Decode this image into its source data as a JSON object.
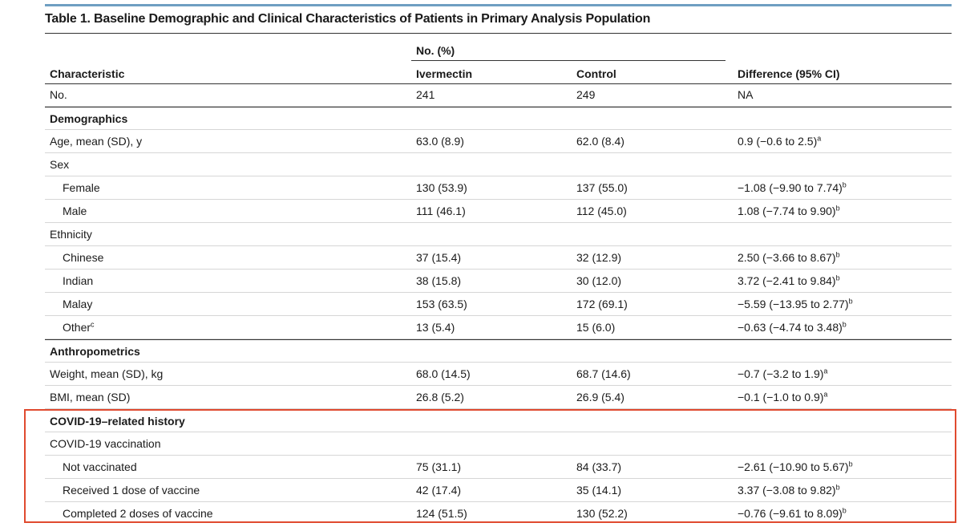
{
  "title": "Table 1. Baseline Demographic and Clinical Characteristics of Patients in Primary Analysis Population",
  "header": {
    "characteristic": "Characteristic",
    "no_pct": "No. (%)",
    "ivermectin": "Ivermectin",
    "control": "Control",
    "difference": "Difference (95% CI)"
  },
  "rows": [
    {
      "label": "No.",
      "iv": "241",
      "ctl": "249",
      "diff": "NA",
      "sup": ""
    },
    {
      "label": "Demographics",
      "iv": "",
      "ctl": "",
      "diff": "",
      "sup": ""
    },
    {
      "label": "Age, mean (SD), y",
      "iv": "63.0 (8.9)",
      "ctl": "62.0 (8.4)",
      "diff": "0.9 (−0.6 to 2.5)",
      "sup": "a"
    },
    {
      "label": "Sex",
      "iv": "",
      "ctl": "",
      "diff": "",
      "sup": ""
    },
    {
      "label": "Female",
      "iv": "130 (53.9)",
      "ctl": "137 (55.0)",
      "diff": "−1.08 (−9.90 to 7.74)",
      "sup": "b"
    },
    {
      "label": "Male",
      "iv": "111 (46.1)",
      "ctl": "112 (45.0)",
      "diff": "1.08 (−7.74 to 9.90)",
      "sup": "b"
    },
    {
      "label": "Ethnicity",
      "iv": "",
      "ctl": "",
      "diff": "",
      "sup": ""
    },
    {
      "label": "Chinese",
      "iv": "37 (15.4)",
      "ctl": "32 (12.9)",
      "diff": "2.50 (−3.66 to 8.67)",
      "sup": "b"
    },
    {
      "label": "Indian",
      "iv": "38 (15.8)",
      "ctl": "30 (12.0)",
      "diff": "3.72 (−2.41 to 9.84)",
      "sup": "b"
    },
    {
      "label": "Malay",
      "iv": "153 (63.5)",
      "ctl": "172 (69.1)",
      "diff": "−5.59 (−13.95 to 2.77)",
      "sup": "b"
    },
    {
      "label": "Other",
      "label_sup": "c",
      "iv": "13 (5.4)",
      "ctl": "15 (6.0)",
      "diff": "−0.63 (−4.74 to 3.48)",
      "sup": "b"
    },
    {
      "label": "Anthropometrics",
      "iv": "",
      "ctl": "",
      "diff": "",
      "sup": ""
    },
    {
      "label": "Weight, mean (SD), kg",
      "iv": "68.0 (14.5)",
      "ctl": "68.7 (14.6)",
      "diff": "−0.7 (−3.2 to 1.9)",
      "sup": "a"
    },
    {
      "label": "BMI, mean (SD)",
      "iv": "26.8 (5.2)",
      "ctl": "26.9 (5.4)",
      "diff": "−0.1 (−1.0 to 0.9)",
      "sup": "a"
    },
    {
      "label": "COVID-19–related history",
      "iv": "",
      "ctl": "",
      "diff": "",
      "sup": ""
    },
    {
      "label": "COVID-19 vaccination",
      "iv": "",
      "ctl": "",
      "diff": "",
      "sup": ""
    },
    {
      "label": "Not vaccinated",
      "iv": "75 (31.1)",
      "ctl": "84 (33.7)",
      "diff": "−2.61 (−10.90 to 5.67)",
      "sup": "b"
    },
    {
      "label": "Received 1 dose of vaccine",
      "iv": "42 (17.4)",
      "ctl": "35 (14.1)",
      "diff": "3.37 (−3.08 to 9.82)",
      "sup": "b"
    },
    {
      "label": "Completed 2 doses of vaccine",
      "iv": "124 (51.5)",
      "ctl": "130 (52.2)",
      "diff": "−0.76 (−9.61 to 8.09)",
      "sup": "b"
    }
  ],
  "colors": {
    "top_rule": "#6f9fc2",
    "highlight_box": "#e04a2f"
  }
}
